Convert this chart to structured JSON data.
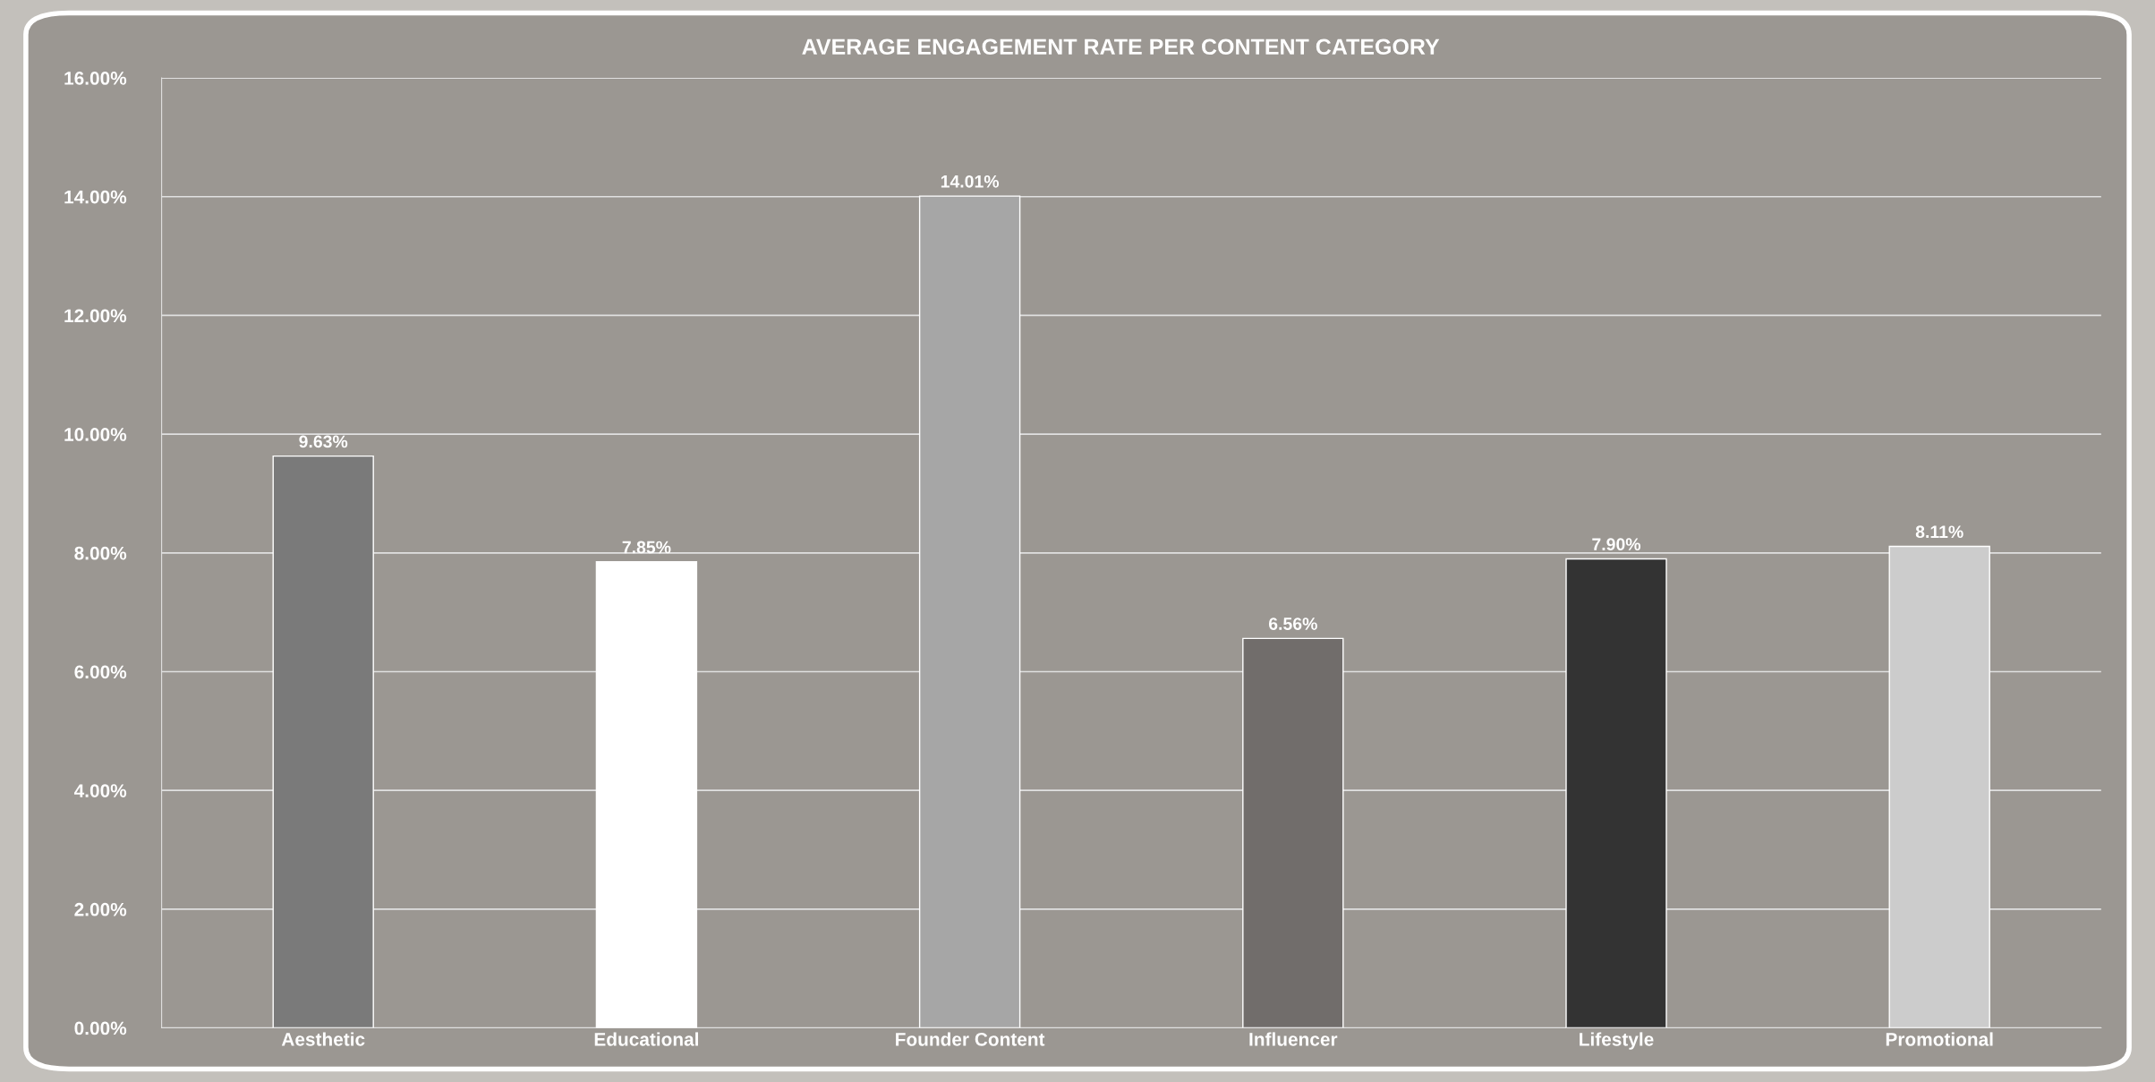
{
  "chart_data": {
    "type": "bar",
    "title": "AVERAGE ENGAGEMENT RATE PER CONTENT CATEGORY",
    "categories": [
      "Aesthetic",
      "Educational",
      "Founder Content",
      "Influencer",
      "Lifestyle",
      "Promotional"
    ],
    "values": [
      9.63,
      7.85,
      14.01,
      6.56,
      7.9,
      8.11
    ],
    "colors": [
      "#7a7a7a",
      "#ffffff",
      "#a6a6a6",
      "#716d6b",
      "#333333",
      "#cccccc"
    ],
    "value_labels": [
      "9.63%",
      "7.85%",
      "14.01%",
      "6.56%",
      "7.90%",
      "8.11%"
    ],
    "ylim": [
      0,
      16
    ],
    "yticks": [
      {
        "value": 0,
        "label": "0.00%"
      },
      {
        "value": 2,
        "label": "2.00%"
      },
      {
        "value": 4,
        "label": "4.00%"
      },
      {
        "value": 6,
        "label": "6.00%"
      },
      {
        "value": 8,
        "label": "8.00%"
      },
      {
        "value": 10,
        "label": "10.00%"
      },
      {
        "value": 12,
        "label": "12.00%"
      },
      {
        "value": 14,
        "label": "14.00%"
      },
      {
        "value": 16,
        "label": "16.00%"
      }
    ],
    "grid": "y"
  }
}
